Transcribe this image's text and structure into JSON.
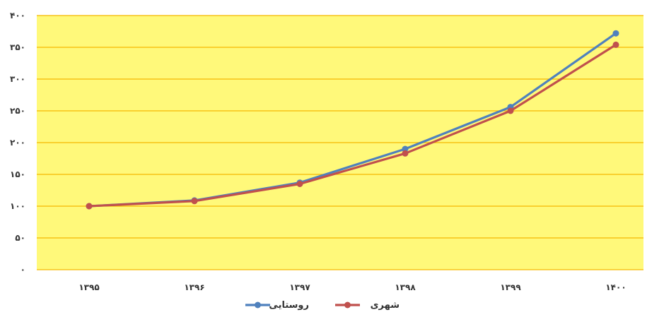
{
  "colors": {
    "plot_background": "#FFF97A",
    "gridline": "#F5B800",
    "series_rural": "#4F81BD",
    "series_urban": "#C0504D"
  },
  "chart_data": {
    "type": "line",
    "x": [
      "۱۳۹۵",
      "۱۳۹۶",
      "۱۳۹۷",
      "۱۳۹۸",
      "۱۳۹۹",
      "۱۴۰۰"
    ],
    "ylim": [
      0,
      400
    ],
    "yticks": [
      0,
      50,
      100,
      150,
      200,
      250,
      300,
      350,
      400
    ],
    "ytick_labels": [
      "۰",
      "۵۰",
      "۱۰۰",
      "۱۵۰",
      "۲۰۰",
      "۲۵۰",
      "۳۰۰",
      "۳۵۰",
      "۴۰۰"
    ],
    "grid": true,
    "legend_position": "bottom",
    "series": [
      {
        "name": "روستایی",
        "color": "#4F81BD",
        "values": [
          100,
          109,
          137,
          190,
          256,
          372
        ]
      },
      {
        "name": "شهری",
        "color": "#C0504D",
        "values": [
          100,
          108,
          135,
          183,
          250,
          354
        ]
      }
    ]
  }
}
